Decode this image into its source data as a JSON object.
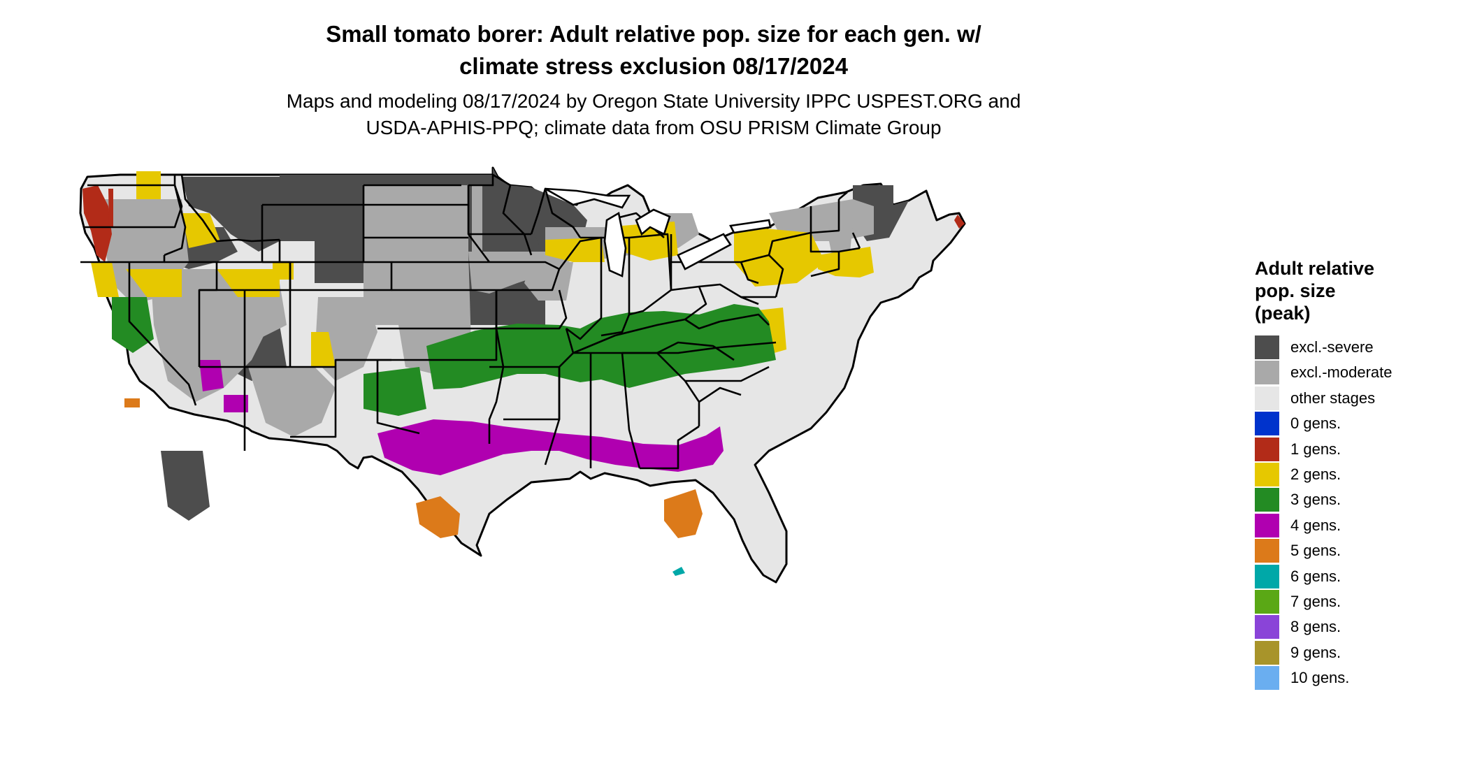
{
  "title": {
    "line1": "Small tomato borer: Adult relative pop. size for each gen. w/",
    "line2": "climate stress exclusion 08/17/2024"
  },
  "subtitle": {
    "line1": "Maps and modeling 08/17/2024 by Oregon State University IPPC USPEST.ORG and",
    "line2": "USDA-APHIS-PPQ; climate data from OSU PRISM Climate Group"
  },
  "legend": {
    "title_lines": [
      "Adult relative",
      "pop. size",
      "(peak)"
    ],
    "items": [
      {
        "label": "excl.-severe",
        "color": "#4d4d4d"
      },
      {
        "label": "excl.-moderate",
        "color": "#a9a9a9"
      },
      {
        "label": "other stages",
        "color": "#e6e6e6"
      },
      {
        "label": "0 gens.",
        "color": "#0033cc"
      },
      {
        "label": "1 gens.",
        "color": "#b22b18"
      },
      {
        "label": "2 gens.",
        "color": "#e6c800"
      },
      {
        "label": "3 gens.",
        "color": "#238b23"
      },
      {
        "label": "4 gens.",
        "color": "#b000b0"
      },
      {
        "label": "5 gens.",
        "color": "#dc7a1a"
      },
      {
        "label": "6 gens.",
        "color": "#00a8a8"
      },
      {
        "label": "7 gens.",
        "color": "#5aa815"
      },
      {
        "label": "8 gens.",
        "color": "#8a44d8"
      },
      {
        "label": "9 gens.",
        "color": "#a8942a"
      },
      {
        "label": "10 gens.",
        "color": "#6aaef0"
      }
    ]
  },
  "map_colors": {
    "background_fill": "#e6e6e6",
    "border": "#000000",
    "excl_severe": "#4d4d4d",
    "excl_moderate": "#a9a9a9",
    "gen1": "#b22b18",
    "gen2": "#e6c800",
    "gen3": "#238b23",
    "gen4": "#b000b0",
    "gen5": "#dc7a1a",
    "gen6": "#00a8a8"
  }
}
